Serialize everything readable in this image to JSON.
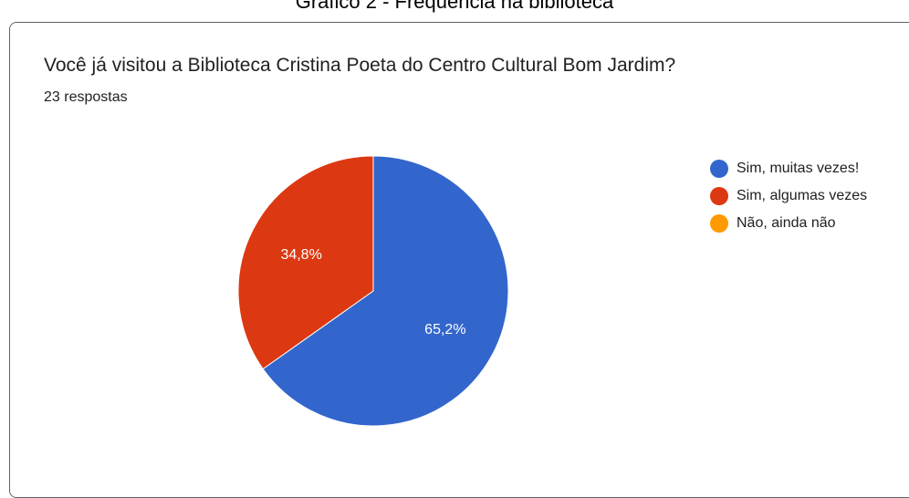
{
  "caption": "Gráfico 2 - Frequência na biblioteca",
  "form": {
    "question": "Você já visitou a Biblioteca Cristina Poeta do Centro Cultural Bom Jardim?",
    "responses": "23 respostas"
  },
  "chart_data": {
    "type": "pie",
    "title": "Você já visitou a Biblioteca Cristina Poeta do Centro Cultural Bom Jardim?",
    "total_responses": 23,
    "legend_position": "right",
    "slices": [
      {
        "label": "Sim, muitas vezes!",
        "value": 65.2,
        "display": "65,2%",
        "color": "#3366cc"
      },
      {
        "label": "Sim, algumas vezes",
        "value": 34.8,
        "display": "34,8%",
        "color": "#dc3912"
      },
      {
        "label": "Não, ainda não",
        "value": 0,
        "display": "",
        "color": "#ff9900"
      }
    ]
  }
}
